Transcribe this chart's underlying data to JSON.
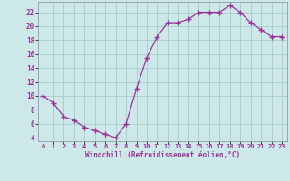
{
  "x": [
    0,
    1,
    2,
    3,
    4,
    5,
    6,
    7,
    8,
    9,
    10,
    11,
    12,
    13,
    14,
    15,
    16,
    17,
    18,
    19,
    20,
    21,
    22,
    23
  ],
  "y": [
    10,
    9,
    7,
    6.5,
    5.5,
    5,
    4.5,
    4,
    6,
    11,
    15.5,
    18.5,
    20.5,
    20.5,
    21,
    22,
    22,
    22,
    23,
    22,
    20.5,
    19.5,
    18.5,
    18.5
  ],
  "line_color": "#993399",
  "marker": "+",
  "marker_size": 4,
  "bg_color": "#cce8e8",
  "grid_color": "#aacccc",
  "xlabel": "Windchill (Refroidissement éolien,°C)",
  "xlabel_color": "#993399",
  "tick_color": "#993399",
  "ylim": [
    3.5,
    23.5
  ],
  "yticks": [
    4,
    6,
    8,
    10,
    12,
    14,
    16,
    18,
    20,
    22
  ],
  "xlim": [
    -0.5,
    23.5
  ],
  "xticks": [
    0,
    1,
    2,
    3,
    4,
    5,
    6,
    7,
    8,
    9,
    10,
    11,
    12,
    13,
    14,
    15,
    16,
    17,
    18,
    19,
    20,
    21,
    22,
    23
  ],
  "xticklabels": [
    "0",
    "1",
    "2",
    "3",
    "4",
    "5",
    "6",
    "7",
    "8",
    "9",
    "10",
    "11",
    "12",
    "13",
    "14",
    "15",
    "16",
    "17",
    "18",
    "19",
    "20",
    "21",
    "22",
    "23"
  ]
}
